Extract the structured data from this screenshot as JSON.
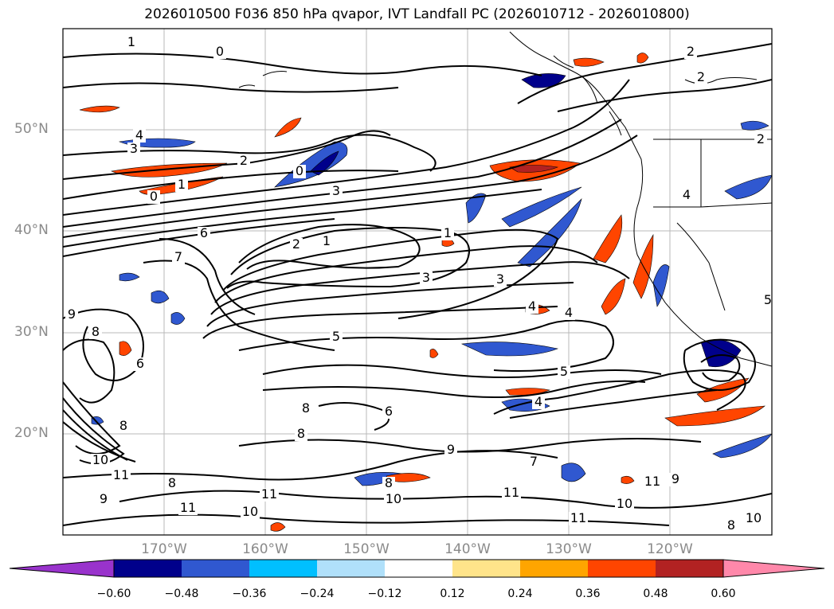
{
  "title": "2026010500 F036 850 hPa qvapor, IVT Landfall PC (2026010712 - 2026010800)",
  "map": {
    "projection": "lat-lon",
    "lat_ticks": [
      "50°N",
      "40°N",
      "30°N",
      "20°N"
    ],
    "lon_ticks": [
      "170°W",
      "160°W",
      "150°W",
      "140°W",
      "130°W",
      "120°W"
    ],
    "gridlines": true,
    "contour_labels": [
      {
        "text": "1"
      },
      {
        "text": "0"
      },
      {
        "text": "2"
      },
      {
        "text": "3"
      },
      {
        "text": "4"
      },
      {
        "text": "3"
      },
      {
        "text": "2"
      },
      {
        "text": "1"
      },
      {
        "text": "0"
      },
      {
        "text": "0"
      },
      {
        "text": "3"
      },
      {
        "text": "6"
      },
      {
        "text": "7"
      },
      {
        "text": "2"
      },
      {
        "text": "1"
      },
      {
        "text": "1"
      },
      {
        "text": "3"
      },
      {
        "text": "3"
      },
      {
        "text": "4"
      },
      {
        "text": "4"
      },
      {
        "text": "5"
      },
      {
        "text": "5"
      },
      {
        "text": "4"
      },
      {
        "text": "9"
      },
      {
        "text": "8"
      },
      {
        "text": "8"
      },
      {
        "text": "6"
      },
      {
        "text": "8"
      },
      {
        "text": "10"
      },
      {
        "text": "11"
      },
      {
        "text": "8"
      },
      {
        "text": "11"
      },
      {
        "text": "9"
      },
      {
        "text": "11"
      },
      {
        "text": "10"
      },
      {
        "text": "10"
      },
      {
        "text": "8"
      },
      {
        "text": "7"
      },
      {
        "text": "11"
      },
      {
        "text": "11"
      },
      {
        "text": "10"
      },
      {
        "text": "9"
      },
      {
        "text": "11"
      },
      {
        "text": "8"
      },
      {
        "text": "10"
      },
      {
        "text": "9"
      },
      {
        "text": "2"
      },
      {
        "text": "2"
      },
      {
        "text": "4"
      },
      {
        "text": "6"
      },
      {
        "text": "8"
      },
      {
        "text": "5"
      }
    ]
  },
  "colorbar": {
    "labels": [
      "−0.60",
      "−0.48",
      "−0.36",
      "−0.24",
      "−0.12",
      "0.12",
      "0.24",
      "0.36",
      "0.48",
      "0.60"
    ],
    "colors": [
      "#9933cc",
      "#00008b",
      "#3058d0",
      "#00bfff",
      "#b0e0fa",
      "#ffffff",
      "#ffe48a",
      "#ffa500",
      "#ff4500",
      "#b22222",
      "#ff88aa"
    ]
  }
}
